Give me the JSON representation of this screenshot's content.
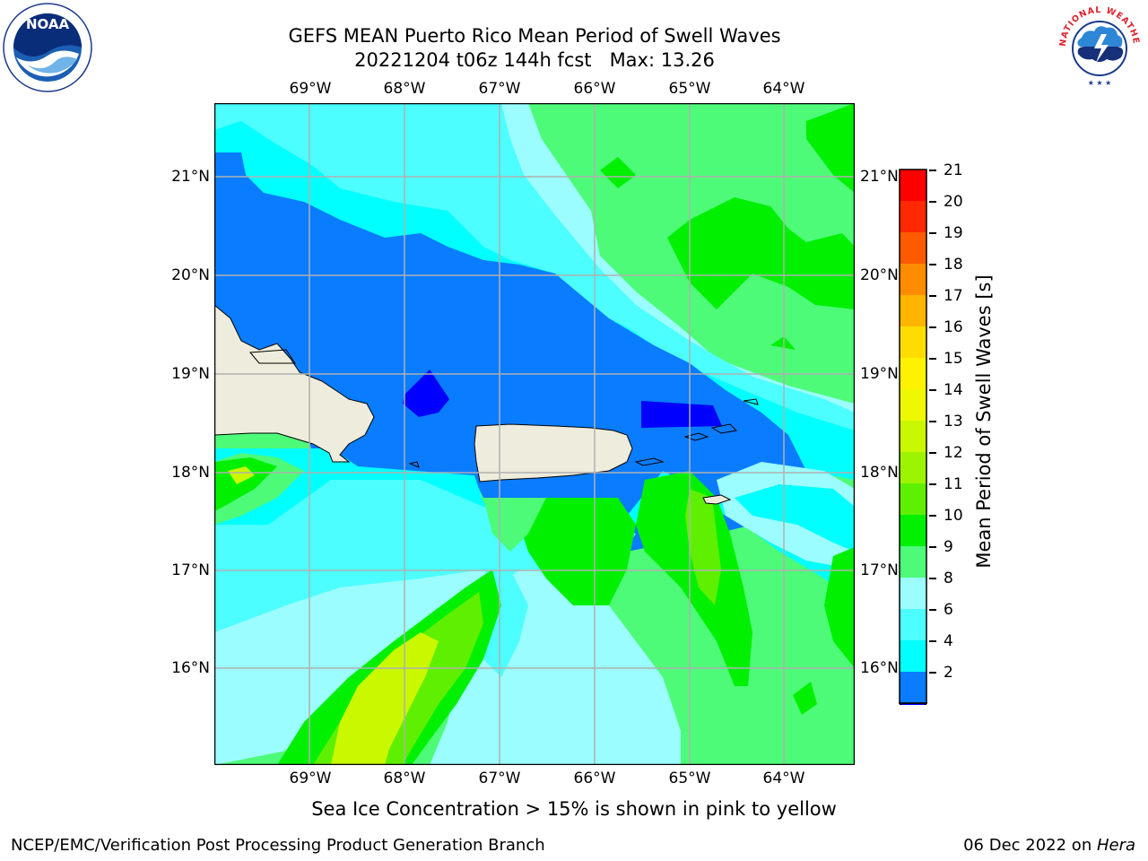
{
  "header": {
    "title_line1": "GEFS MEAN Puerto Rico Mean Period of Swell Waves",
    "title_line2": "20221204 t06z 144h fcst   Max: 13.26"
  },
  "logos": {
    "left_icon": "noaa-logo-icon",
    "left_text": "NOAA",
    "left_ring_text": "NATIONAL OCEANIC AND ATMOSPHERIC ADMINISTRATION • U.S. DEPARTMENT OF COMMERCE",
    "right_icon": "nws-logo-icon",
    "right_ring_text": "NATIONAL WEATHER SERVICE"
  },
  "map": {
    "lon_labels": [
      "69°W",
      "68°W",
      "67°W",
      "66°W",
      "65°W",
      "64°W"
    ],
    "lat_labels": [
      "21°N",
      "20°N",
      "19°N",
      "18°N",
      "17°N",
      "16°N"
    ],
    "colors": {
      "ocean_deep": "#0000ff",
      "ocean_blue": "#0a7cff",
      "cyan": "#00ffff",
      "light_cyan": "#4cfeff",
      "pale_cyan": "#9bfdff",
      "light_green": "#4dfb78",
      "green": "#00f000",
      "bright_green": "#5ef000",
      "yellow_green": "#c9f800",
      "land": "#eeecdc",
      "grid": "#b0b0b0"
    }
  },
  "colorbar": {
    "label": "Mean Period of Swell Waves [s]",
    "ticks": [
      "21",
      "20",
      "19",
      "18",
      "17",
      "16",
      "15",
      "14",
      "13",
      "12",
      "11",
      "10",
      "9",
      "8",
      "6",
      "4",
      "2"
    ],
    "colors": [
      "#ff0000",
      "#ff2800",
      "#ff5a00",
      "#ff8c00",
      "#ffb400",
      "#ffdc00",
      "#fff200",
      "#eef800",
      "#c9f800",
      "#9cf400",
      "#5ef000",
      "#00f000",
      "#4dfb78",
      "#9bfdff",
      "#4cfeff",
      "#00ffff",
      "#0a7cff",
      "#0000ff"
    ]
  },
  "caption": "Sea Ice Concentration > 15% is shown in pink to yellow",
  "footer": {
    "left": "NCEP/EMC/Verification Post Processing Product Generation Branch",
    "right_prefix": "06 Dec 2022 on ",
    "right_host": "Hera"
  }
}
